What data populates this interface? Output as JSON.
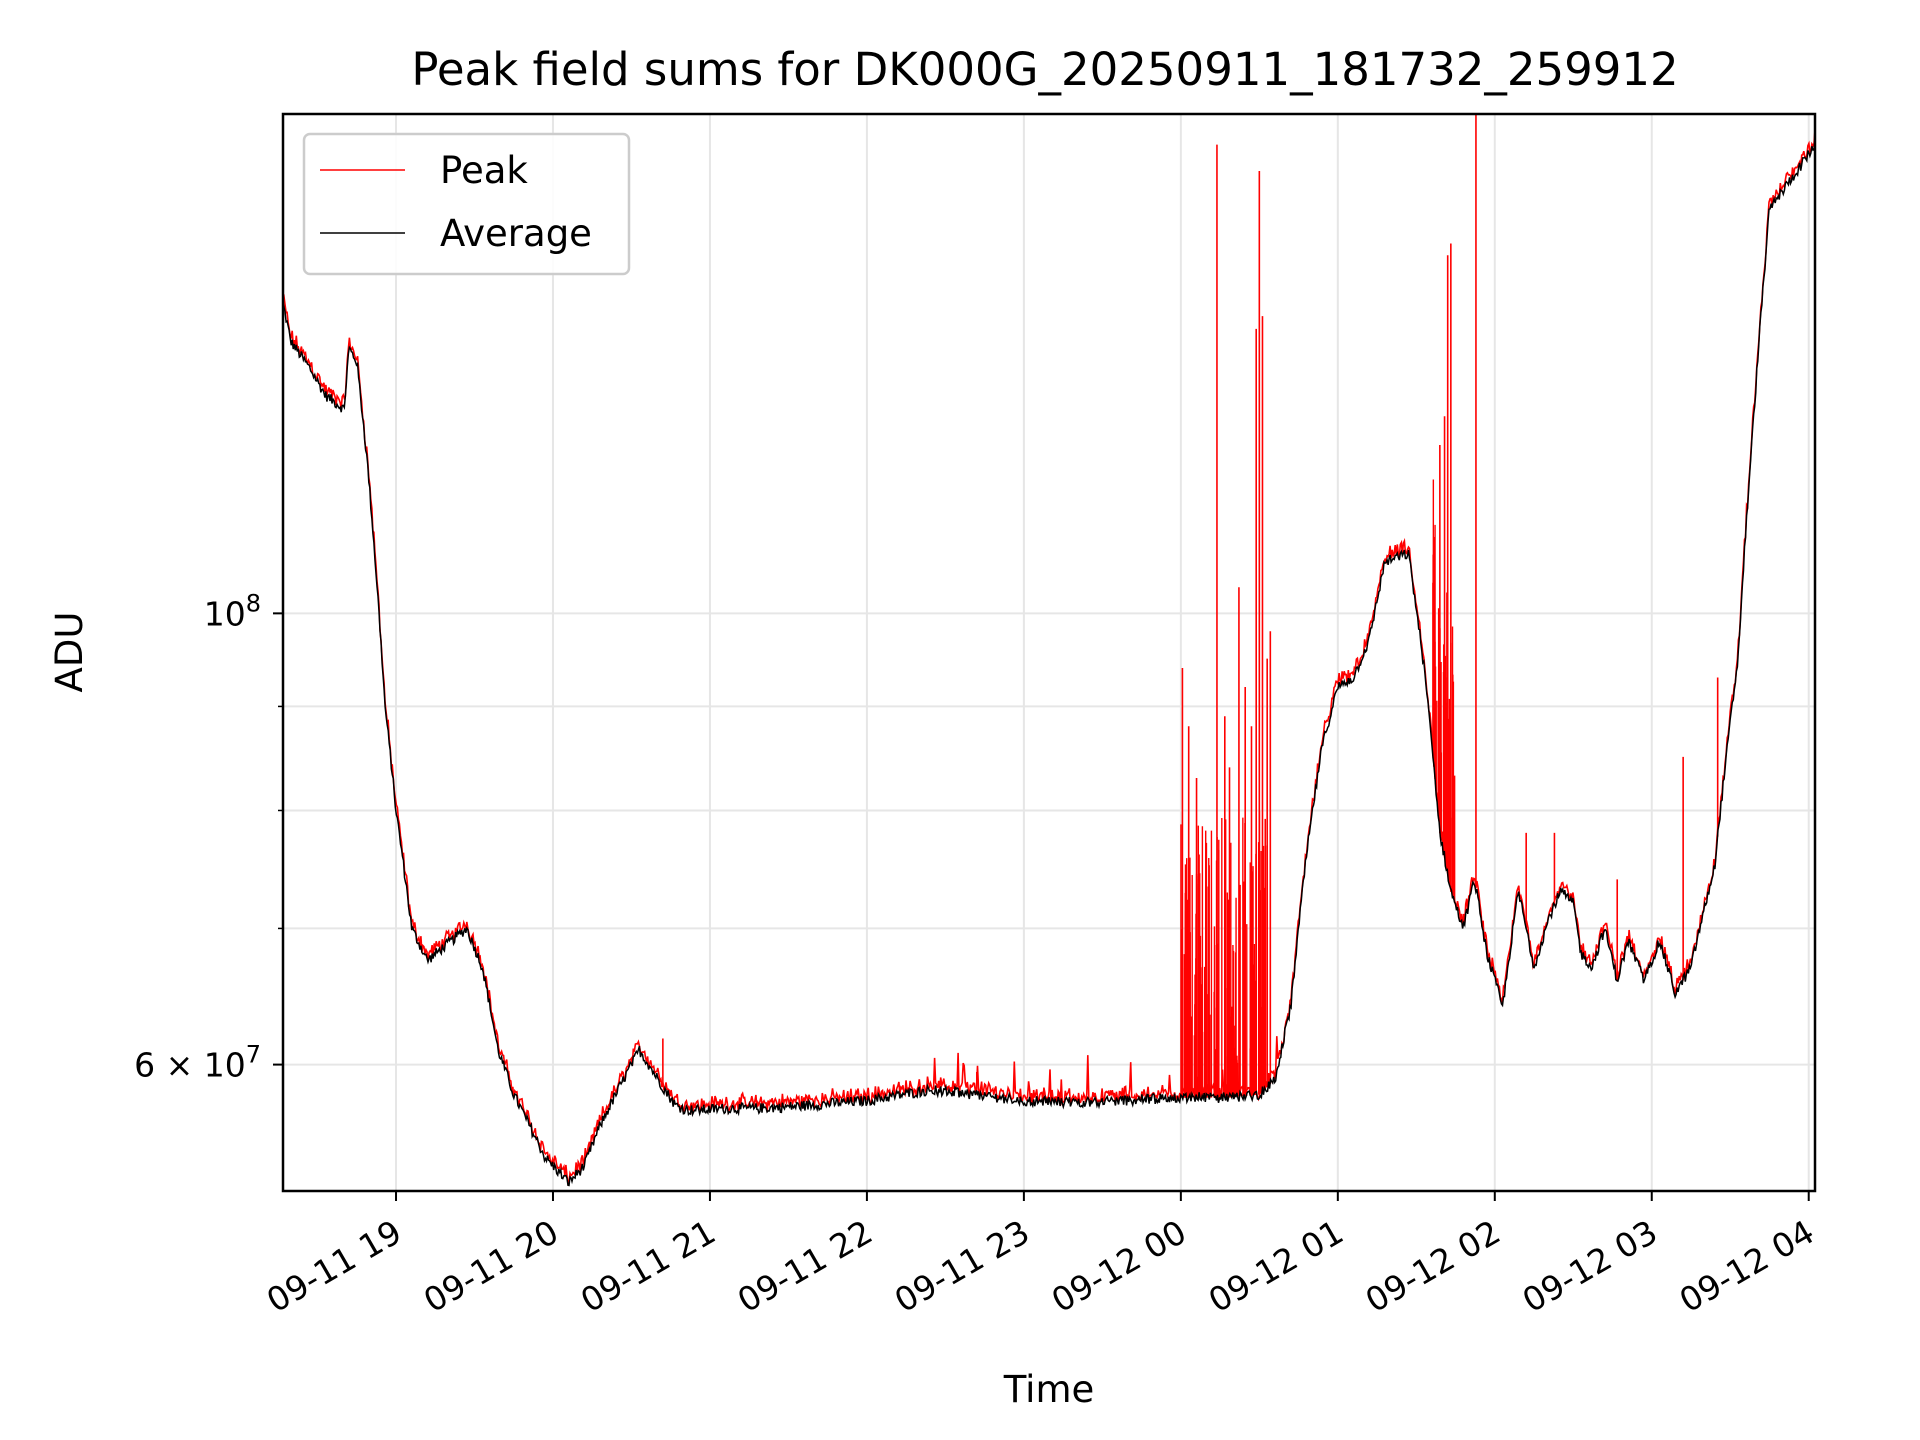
{
  "colors": {
    "peak": "#ff0000",
    "average": "#000000",
    "grid": "#e6e6e6",
    "background": "#ffffff"
  },
  "chart_data": {
    "type": "line",
    "title": "Peak field sums for DK000G_20250911_181732_259912",
    "xlabel": "Time",
    "ylabel": "ADU",
    "yscale": "log",
    "grid": true,
    "legend_position": "upper-left",
    "xlim": [
      18.28,
      28.04
    ],
    "ylim": [
      52000000,
      176000000
    ],
    "x_unit": "hours since 2025-09-11 00:00",
    "x_ticks": [
      {
        "value": 19,
        "label": "09-11 19"
      },
      {
        "value": 20,
        "label": "09-11 20"
      },
      {
        "value": 21,
        "label": "09-11 21"
      },
      {
        "value": 22,
        "label": "09-11 22"
      },
      {
        "value": 23,
        "label": "09-11 23"
      },
      {
        "value": 24,
        "label": "09-12 00"
      },
      {
        "value": 25,
        "label": "09-12 01"
      },
      {
        "value": 26,
        "label": "09-12 02"
      },
      {
        "value": 27,
        "label": "09-12 03"
      },
      {
        "value": 28,
        "label": "09-12 04"
      }
    ],
    "y_ticks": [
      {
        "value": 100000000,
        "base": "10",
        "exp": "8"
      },
      {
        "value": 60000000,
        "mant": "6",
        "times": "×",
        "base": "10",
        "exp": "7"
      }
    ],
    "y_minor_gridlines": [
      70000000,
      80000000,
      90000000
    ],
    "series": [
      {
        "name": "Average",
        "color": "#000000",
        "x": [
          18.28,
          18.33,
          18.45,
          18.55,
          18.67,
          18.7,
          18.75,
          18.82,
          18.88,
          18.93,
          19.0,
          19.1,
          19.2,
          19.3,
          19.45,
          19.55,
          19.65,
          19.75,
          19.85,
          19.95,
          20.1,
          20.2,
          20.3,
          20.45,
          20.55,
          20.7,
          20.78,
          20.85,
          20.95,
          21.1,
          21.3,
          21.5,
          22.0,
          22.4,
          22.7,
          23.0,
          23.3,
          23.6,
          24.0,
          24.3,
          24.5,
          24.6,
          24.7,
          24.8,
          24.9,
          25.0,
          25.1,
          25.2,
          25.3,
          25.45,
          25.55,
          25.65,
          25.72,
          25.8,
          25.87,
          25.95,
          26.05,
          26.15,
          26.25,
          26.35,
          26.42,
          26.5,
          26.55,
          26.62,
          26.7,
          26.78,
          26.85,
          26.95,
          27.05,
          27.15,
          27.25,
          27.4,
          27.55,
          27.65,
          27.75,
          27.85,
          27.95,
          28.04
        ],
        "y": [
          142000000,
          136000000,
          132000000,
          128000000,
          126000000,
          135000000,
          133000000,
          118000000,
          103000000,
          90000000,
          80000000,
          70000000,
          67500000,
          68500000,
          70000000,
          67000000,
          61000000,
          58000000,
          56000000,
          54000000,
          52500000,
          53500000,
          56000000,
          59000000,
          61000000,
          58500000,
          57300000,
          57000000,
          57000000,
          57100000,
          57100000,
          57200000,
          57600000,
          58300000,
          58000000,
          57600000,
          57500000,
          57600000,
          57800000,
          57800000,
          58000000,
          59000000,
          64000000,
          76000000,
          86000000,
          92000000,
          93000000,
          97000000,
          106000000,
          107000000,
          94000000,
          78000000,
          73000000,
          70000000,
          74000000,
          68000000,
          64000000,
          73000000,
          67000000,
          71000000,
          73000000,
          72000000,
          68000000,
          67000000,
          70000000,
          66000000,
          69000000,
          66000000,
          69000000,
          65000000,
          67000000,
          75000000,
          95000000,
          125000000,
          158000000,
          162000000,
          166000000,
          170000000
        ]
      },
      {
        "name": "Peak",
        "color": "#ff0000",
        "baseline": "follows Average with small excursions",
        "spikes": [
          {
            "x": 24.01,
            "y": 94000000
          },
          {
            "x": 24.05,
            "y": 88000000
          },
          {
            "x": 24.1,
            "y": 83000000
          },
          {
            "x": 24.23,
            "y": 170000000
          },
          {
            "x": 24.28,
            "y": 89000000
          },
          {
            "x": 24.31,
            "y": 84000000
          },
          {
            "x": 24.37,
            "y": 103000000
          },
          {
            "x": 24.41,
            "y": 92000000
          },
          {
            "x": 24.45,
            "y": 88000000
          },
          {
            "x": 24.48,
            "y": 138000000
          },
          {
            "x": 24.5,
            "y": 165000000
          },
          {
            "x": 24.52,
            "y": 140000000
          },
          {
            "x": 24.55,
            "y": 95000000
          },
          {
            "x": 24.57,
            "y": 98000000
          },
          {
            "x": 25.65,
            "y": 121000000
          },
          {
            "x": 25.68,
            "y": 125000000
          },
          {
            "x": 25.7,
            "y": 150000000
          },
          {
            "x": 25.72,
            "y": 152000000
          },
          {
            "x": 25.88,
            "y": 176000000
          },
          {
            "x": 26.2,
            "y": 78000000
          },
          {
            "x": 26.38,
            "y": 78000000
          },
          {
            "x": 26.78,
            "y": 74000000
          },
          {
            "x": 27.2,
            "y": 85000000
          },
          {
            "x": 27.42,
            "y": 93000000
          },
          {
            "x": 20.7,
            "y": 61800000
          },
          {
            "x": 22.7,
            "y": 59500000
          }
        ]
      }
    ]
  }
}
